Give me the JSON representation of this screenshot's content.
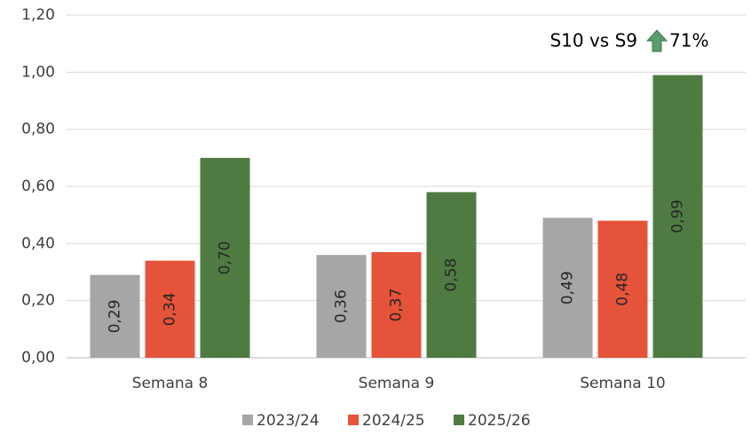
{
  "chart_data": {
    "type": "bar",
    "categories": [
      "Semana 8",
      "Semana 9",
      "Semana 10"
    ],
    "series": [
      {
        "name": "2023/24",
        "color": "#a6a6a6",
        "values": [
          0.29,
          0.36,
          0.49
        ],
        "value_labels": [
          "0,29",
          "0,36",
          "0,49"
        ]
      },
      {
        "name": "2024/25",
        "color": "#e5533a",
        "values": [
          0.34,
          0.37,
          0.48
        ],
        "value_labels": [
          "0,34",
          "0,37",
          "0,48"
        ]
      },
      {
        "name": "2025/26",
        "color": "#4f7b42",
        "values": [
          0.7,
          0.58,
          0.99
        ],
        "value_labels": [
          "0,70",
          "0,58",
          "0,99"
        ]
      }
    ],
    "ylim": [
      0,
      1.2
    ],
    "yticks": [
      {
        "value": 0,
        "label": "0,00"
      },
      {
        "value": 0.2,
        "label": "0,20"
      },
      {
        "value": 0.4,
        "label": "0,40"
      },
      {
        "value": 0.6,
        "label": "0,60"
      },
      {
        "value": 0.8,
        "label": "0,80"
      },
      {
        "value": 1.0,
        "label": "1,00"
      },
      {
        "value": 1.2,
        "label": "1,20"
      }
    ],
    "grid": true,
    "legend": "bottom",
    "annotation": {
      "text": "S10 vs S9",
      "change": "71%",
      "arrow_color": "#5a9a6e"
    }
  }
}
